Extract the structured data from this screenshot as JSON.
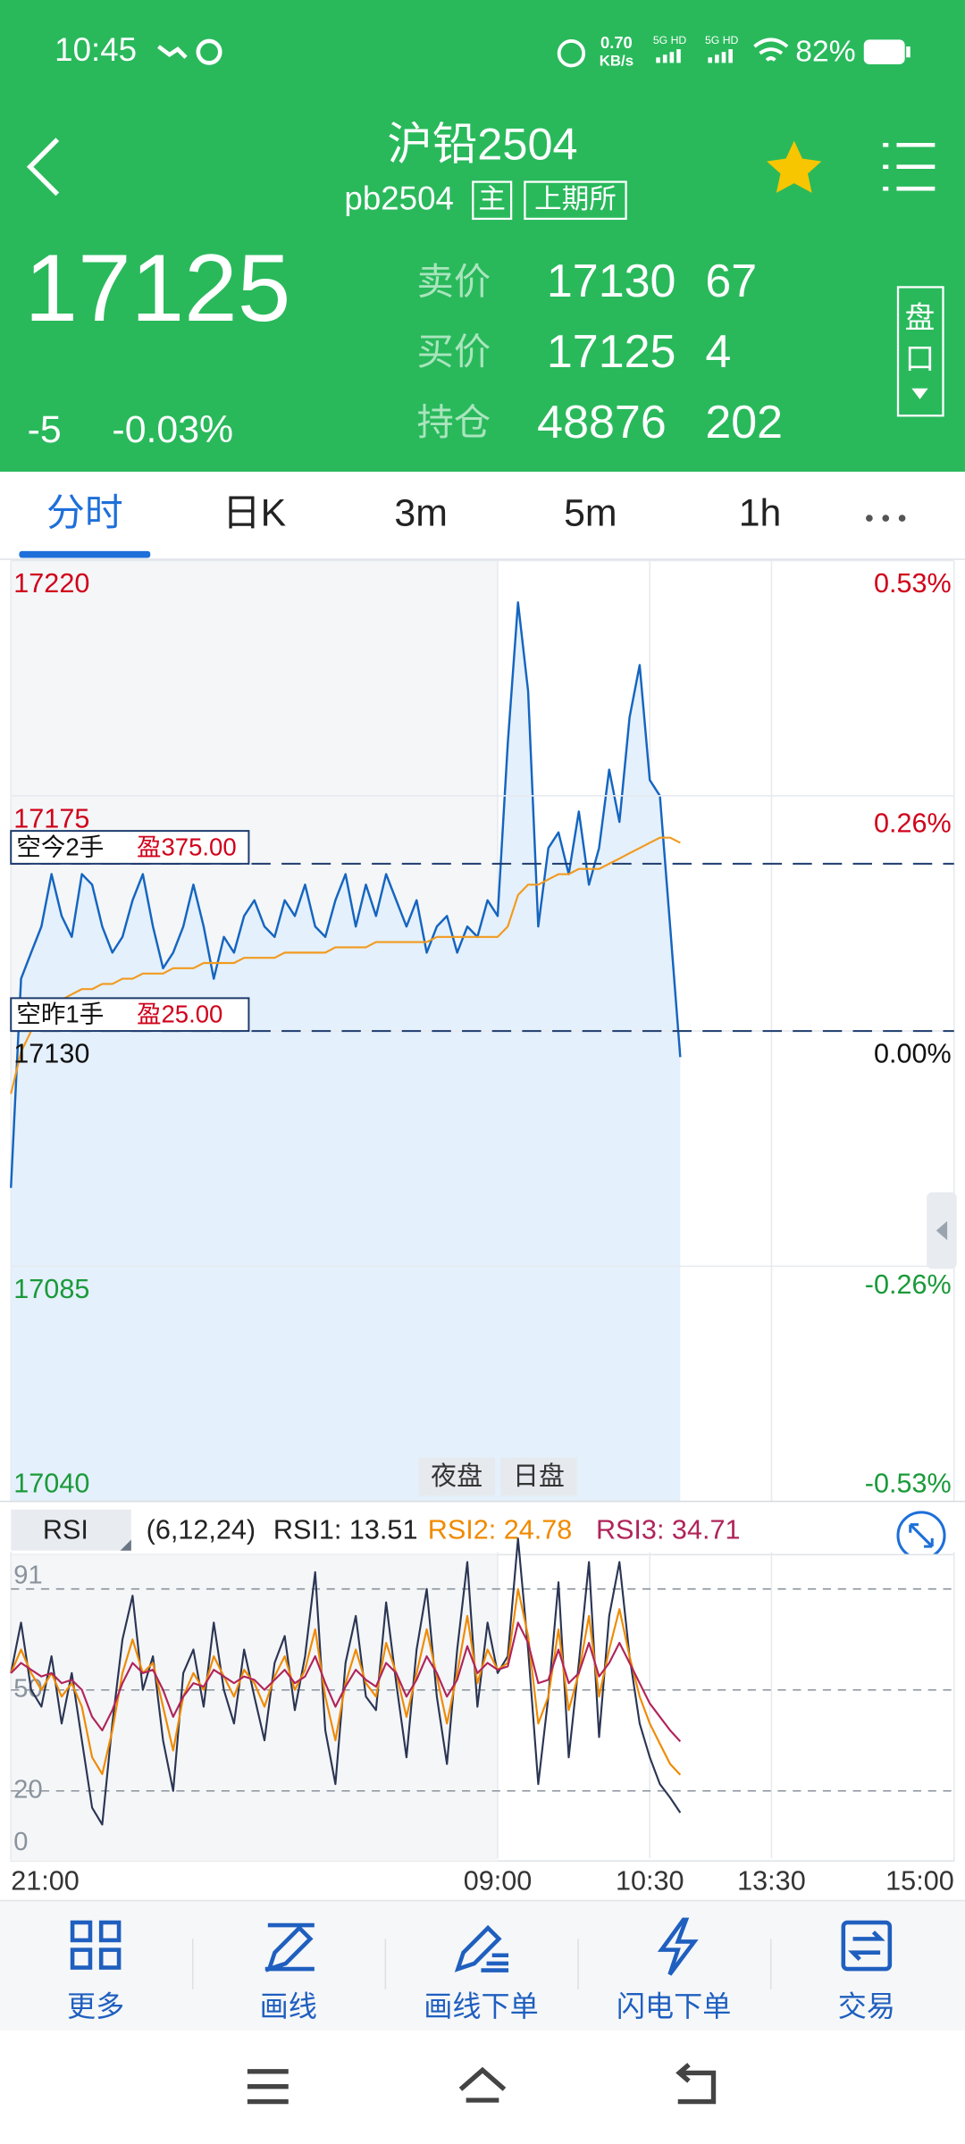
{
  "status_bar": {
    "time": "10:45",
    "net_speed": "0.70",
    "net_unit": "KB/s",
    "sim1": "5G HD",
    "sim2": "5G HD",
    "battery": "82%"
  },
  "header": {
    "title": "沪铅2504",
    "code": "pb2504",
    "tags": [
      "主",
      "上期所"
    ]
  },
  "quote": {
    "price": "17125",
    "change": "-5",
    "change_pct": "-0.03%",
    "rows": [
      {
        "label": "卖价",
        "price": "17130",
        "volume": "67"
      },
      {
        "label": "买价",
        "price": "17125",
        "volume": "4"
      },
      {
        "label": "持仓",
        "price": "48876",
        "volume": "202"
      }
    ],
    "side_button": [
      "盘",
      "口"
    ]
  },
  "tabs": [
    "分时",
    "日K",
    "3m",
    "5m",
    "1h"
  ],
  "chart_data": [
    {
      "type": "line",
      "x": [
        0,
        5,
        10,
        15,
        20,
        25,
        30,
        35,
        40,
        45,
        50,
        55,
        60,
        65,
        70,
        75,
        80,
        85,
        90,
        95,
        100,
        105,
        110,
        115,
        120,
        125,
        130,
        135,
        140,
        145,
        150,
        155,
        160,
        165,
        170,
        175,
        180,
        185,
        190,
        195,
        200,
        205,
        210,
        215,
        220,
        225,
        230,
        235,
        240,
        245,
        250,
        255,
        260,
        265,
        270,
        275,
        280,
        285,
        290,
        295,
        300,
        305,
        310,
        315,
        320,
        325,
        330
      ],
      "xlim": [
        0,
        465
      ],
      "ylim": [
        17040,
        17220
      ],
      "yticks": [
        17040,
        17085,
        17130,
        17175,
        17220
      ],
      "y2lim": [
        -0.53,
        0.53
      ],
      "y2ticks": [
        {
          "value": -0.53,
          "label": "-0.53%"
        },
        {
          "value": -0.26,
          "label": "-0.26%"
        },
        {
          "value": 0,
          "label": "0.00%"
        },
        {
          "value": 0.26,
          "label": "0.26%"
        },
        {
          "value": 0.53,
          "label": "0.53%"
        }
      ],
      "grid": true,
      "series": [
        {
          "color": "#1565c0",
          "fill": "#e4f0fb",
          "values": [
            17100,
            17140,
            17145,
            17150,
            17160,
            17152,
            17148,
            17160,
            17158,
            17150,
            17145,
            17148,
            17155,
            17160,
            17150,
            17142,
            17145,
            17150,
            17158,
            17150,
            17140,
            17148,
            17145,
            17152,
            17155,
            17150,
            17148,
            17155,
            17152,
            17158,
            17150,
            17148,
            17155,
            17160,
            17150,
            17158,
            17152,
            17160,
            17155,
            17150,
            17155,
            17145,
            17150,
            17152,
            17145,
            17150,
            17148,
            17155,
            17152,
            17185,
            17212,
            17195,
            17150,
            17165,
            17168,
            17160,
            17172,
            17158,
            17165,
            17180,
            17170,
            17190,
            17200,
            17178,
            17175,
            17150,
            17125
          ]
        },
        {
          "color": "#f29a1f",
          "values": [
            17118,
            17126,
            17130,
            17133,
            17135,
            17136,
            17137,
            17138,
            17138,
            17139,
            17139,
            17140,
            17140,
            17141,
            17141,
            17141,
            17142,
            17142,
            17142,
            17143,
            17143,
            17143,
            17143,
            17144,
            17144,
            17144,
            17144,
            17145,
            17145,
            17145,
            17145,
            17145,
            17146,
            17146,
            17146,
            17146,
            17147,
            17147,
            17147,
            17147,
            17147,
            17147,
            17148,
            17148,
            17148,
            17148,
            17148,
            17148,
            17148,
            17150,
            17156,
            17158,
            17158,
            17159,
            17160,
            17160,
            17161,
            17161,
            17161,
            17162,
            17163,
            17164,
            17165,
            17166,
            17167,
            17167,
            17166
          ]
        }
      ],
      "positions": [
        {
          "label": "空今2手",
          "profit": "盈375.00",
          "price": 17162
        },
        {
          "label": "空昨1手",
          "profit": "盈25.00",
          "price": 17130
        }
      ],
      "sessions": [
        "夜盘",
        "日盘"
      ]
    },
    {
      "type": "line",
      "title": "RSI",
      "subtitle": "(6,12,24)",
      "x": [
        0,
        5,
        10,
        15,
        20,
        25,
        30,
        35,
        40,
        45,
        50,
        55,
        60,
        65,
        70,
        75,
        80,
        85,
        90,
        95,
        100,
        105,
        110,
        115,
        120,
        125,
        130,
        135,
        140,
        145,
        150,
        155,
        160,
        165,
        170,
        175,
        180,
        185,
        190,
        195,
        200,
        205,
        210,
        215,
        220,
        225,
        230,
        235,
        240,
        245,
        250,
        255,
        260,
        265,
        270,
        275,
        280,
        285,
        290,
        295,
        300,
        305,
        310,
        315,
        320,
        325,
        330
      ],
      "xlim": [
        0,
        465
      ],
      "xticks": [
        {
          "value": 0,
          "label": "21:00"
        },
        {
          "value": 240,
          "label": "09:00"
        },
        {
          "value": 315,
          "label": "10:30"
        },
        {
          "value": 375,
          "label": "13:30"
        },
        {
          "value": 465,
          "label": "15:00"
        }
      ],
      "ylim": [
        0,
        91
      ],
      "yticks": [
        0,
        20,
        50,
        91
      ],
      "grid_lines": [
        20,
        50,
        80
      ],
      "series": [
        {
          "name": "RSI1: 13.51",
          "color": "#2b3553",
          "values": [
            55,
            70,
            50,
            45,
            60,
            40,
            55,
            35,
            15,
            10,
            40,
            65,
            78,
            50,
            60,
            35,
            20,
            55,
            62,
            45,
            70,
            50,
            40,
            62,
            48,
            35,
            58,
            66,
            44,
            60,
            85,
            38,
            22,
            58,
            72,
            48,
            44,
            76,
            52,
            30,
            62,
            80,
            48,
            28,
            62,
            88,
            45,
            70,
            55,
            60,
            95,
            62,
            22,
            48,
            82,
            30,
            58,
            88,
            36,
            72,
            88,
            60,
            40,
            30,
            22,
            18,
            13.51
          ]
        },
        {
          "name": "RSI2: 24.78",
          "color": "#f08a00",
          "values": [
            55,
            62,
            55,
            50,
            55,
            48,
            52,
            45,
            30,
            25,
            38,
            55,
            65,
            55,
            58,
            45,
            32,
            48,
            55,
            50,
            60,
            54,
            48,
            56,
            52,
            45,
            54,
            60,
            50,
            56,
            68,
            48,
            35,
            52,
            62,
            52,
            48,
            64,
            55,
            42,
            55,
            68,
            54,
            40,
            55,
            72,
            52,
            62,
            56,
            58,
            80,
            66,
            40,
            48,
            68,
            44,
            55,
            72,
            48,
            62,
            74,
            60,
            48,
            40,
            34,
            28,
            24.78
          ]
        },
        {
          "name": "RSI3: 34.71",
          "color": "#b0245a",
          "values": [
            55,
            58,
            56,
            54,
            55,
            52,
            53,
            50,
            42,
            38,
            44,
            52,
            58,
            55,
            56,
            50,
            42,
            48,
            52,
            51,
            56,
            54,
            52,
            54,
            53,
            50,
            53,
            56,
            52,
            54,
            60,
            52,
            45,
            51,
            56,
            53,
            51,
            58,
            55,
            48,
            53,
            60,
            55,
            48,
            53,
            63,
            55,
            58,
            56,
            57,
            70,
            64,
            52,
            53,
            62,
            52,
            55,
            64,
            54,
            58,
            64,
            58,
            52,
            46,
            42,
            38,
            34.71
          ]
        }
      ]
    }
  ],
  "toolbar": [
    "更多",
    "画线",
    "画线下单",
    "闪电下单",
    "交易"
  ]
}
